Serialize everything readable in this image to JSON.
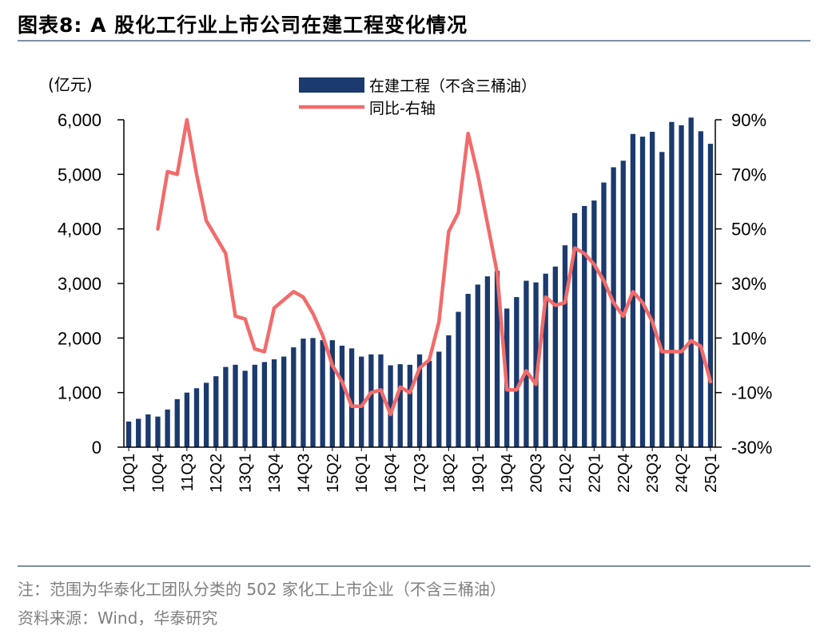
{
  "header": {
    "title": "图表8:  A 股化工行业上市公司在建工程变化情况"
  },
  "footer": {
    "note": "注：范围为华泰化工团队分类的 502 家化工上市企业（不含三桶油）",
    "source": "资料来源：Wind，华泰研究"
  },
  "colors": {
    "bar": "#1b3a6e",
    "line": "#f26b6b",
    "rule": "#7f8fa6"
  },
  "chart_data": {
    "type": "bar",
    "title": "A 股化工行业上市公司在建工程变化情况",
    "ylabel_left": "(亿元)",
    "ylim_left": [
      0,
      6000
    ],
    "yticks_left": [
      "0",
      "1,000",
      "2,000",
      "3,000",
      "4,000",
      "5,000",
      "6,000"
    ],
    "ylim_right": [
      -0.3,
      0.9
    ],
    "yticks_right": [
      "-30%",
      "-10%",
      "10%",
      "30%",
      "50%",
      "70%",
      "90%"
    ],
    "xticks": [
      "10Q1",
      "10Q4",
      "11Q3",
      "12Q2",
      "13Q1",
      "13Q4",
      "14Q3",
      "15Q2",
      "16Q1",
      "16Q4",
      "17Q3",
      "18Q2",
      "19Q1",
      "19Q4",
      "20Q3",
      "21Q2",
      "22Q1",
      "22Q4",
      "23Q3",
      "24Q2",
      "25Q1"
    ],
    "legend_position": "top-center",
    "categories": [
      "10Q1",
      "10Q2",
      "10Q3",
      "10Q4",
      "11Q1",
      "11Q2",
      "11Q3",
      "11Q4",
      "12Q1",
      "12Q2",
      "12Q3",
      "12Q4",
      "13Q1",
      "13Q2",
      "13Q3",
      "13Q4",
      "14Q1",
      "14Q2",
      "14Q3",
      "14Q4",
      "15Q1",
      "15Q2",
      "15Q3",
      "15Q4",
      "16Q1",
      "16Q2",
      "16Q3",
      "16Q4",
      "17Q1",
      "17Q2",
      "17Q3",
      "17Q4",
      "18Q1",
      "18Q2",
      "18Q3",
      "18Q4",
      "19Q1",
      "19Q2",
      "19Q3",
      "19Q4",
      "20Q1",
      "20Q2",
      "20Q3",
      "20Q4",
      "21Q1",
      "21Q2",
      "21Q3",
      "21Q4",
      "22Q1",
      "22Q2",
      "22Q3",
      "22Q4",
      "23Q1",
      "23Q2",
      "23Q3",
      "23Q4",
      "24Q1",
      "24Q2",
      "24Q3",
      "24Q4",
      "25Q1"
    ],
    "series": [
      {
        "name": "在建工程（不含三桶油）",
        "type": "bar",
        "axis": "left",
        "values": [
          470,
          520,
          600,
          560,
          690,
          880,
          1000,
          1080,
          1180,
          1300,
          1470,
          1510,
          1400,
          1510,
          1560,
          1610,
          1660,
          1830,
          1990,
          2000,
          1960,
          1960,
          1860,
          1810,
          1660,
          1700,
          1700,
          1500,
          1520,
          1510,
          1700,
          1580,
          1750,
          2050,
          2480,
          2810,
          2980,
          3130,
          3230,
          2540,
          2750,
          3050,
          3020,
          3180,
          3310,
          3700,
          4290,
          4420,
          4520,
          4850,
          5130,
          5250,
          5740,
          5690,
          5780,
          5410,
          5960,
          5900,
          6040,
          5790,
          5560
        ]
      },
      {
        "name": "同比-右轴",
        "type": "line",
        "axis": "right",
        "values": [
          null,
          null,
          null,
          0.5,
          0.71,
          0.7,
          0.9,
          0.7,
          0.53,
          0.47,
          0.41,
          0.18,
          0.17,
          0.06,
          0.05,
          0.21,
          0.24,
          0.27,
          0.25,
          0.19,
          0.11,
          0.0,
          -0.06,
          -0.15,
          -0.15,
          -0.1,
          -0.09,
          -0.18,
          -0.08,
          -0.1,
          -0.01,
          0.02,
          0.16,
          0.49,
          0.56,
          0.85,
          0.7,
          0.52,
          0.34,
          -0.09,
          -0.09,
          -0.02,
          -0.07,
          0.25,
          0.22,
          0.23,
          0.43,
          0.41,
          0.37,
          0.31,
          0.23,
          0.18,
          0.27,
          0.23,
          0.16,
          0.05,
          0.05,
          0.05,
          0.09,
          0.07,
          -0.06
        ]
      }
    ]
  }
}
